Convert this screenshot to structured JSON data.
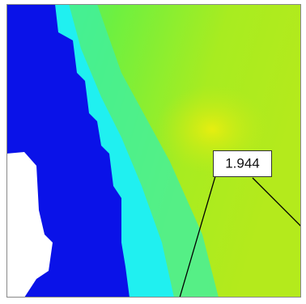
{
  "annotation": {
    "label": "1.944"
  }
}
